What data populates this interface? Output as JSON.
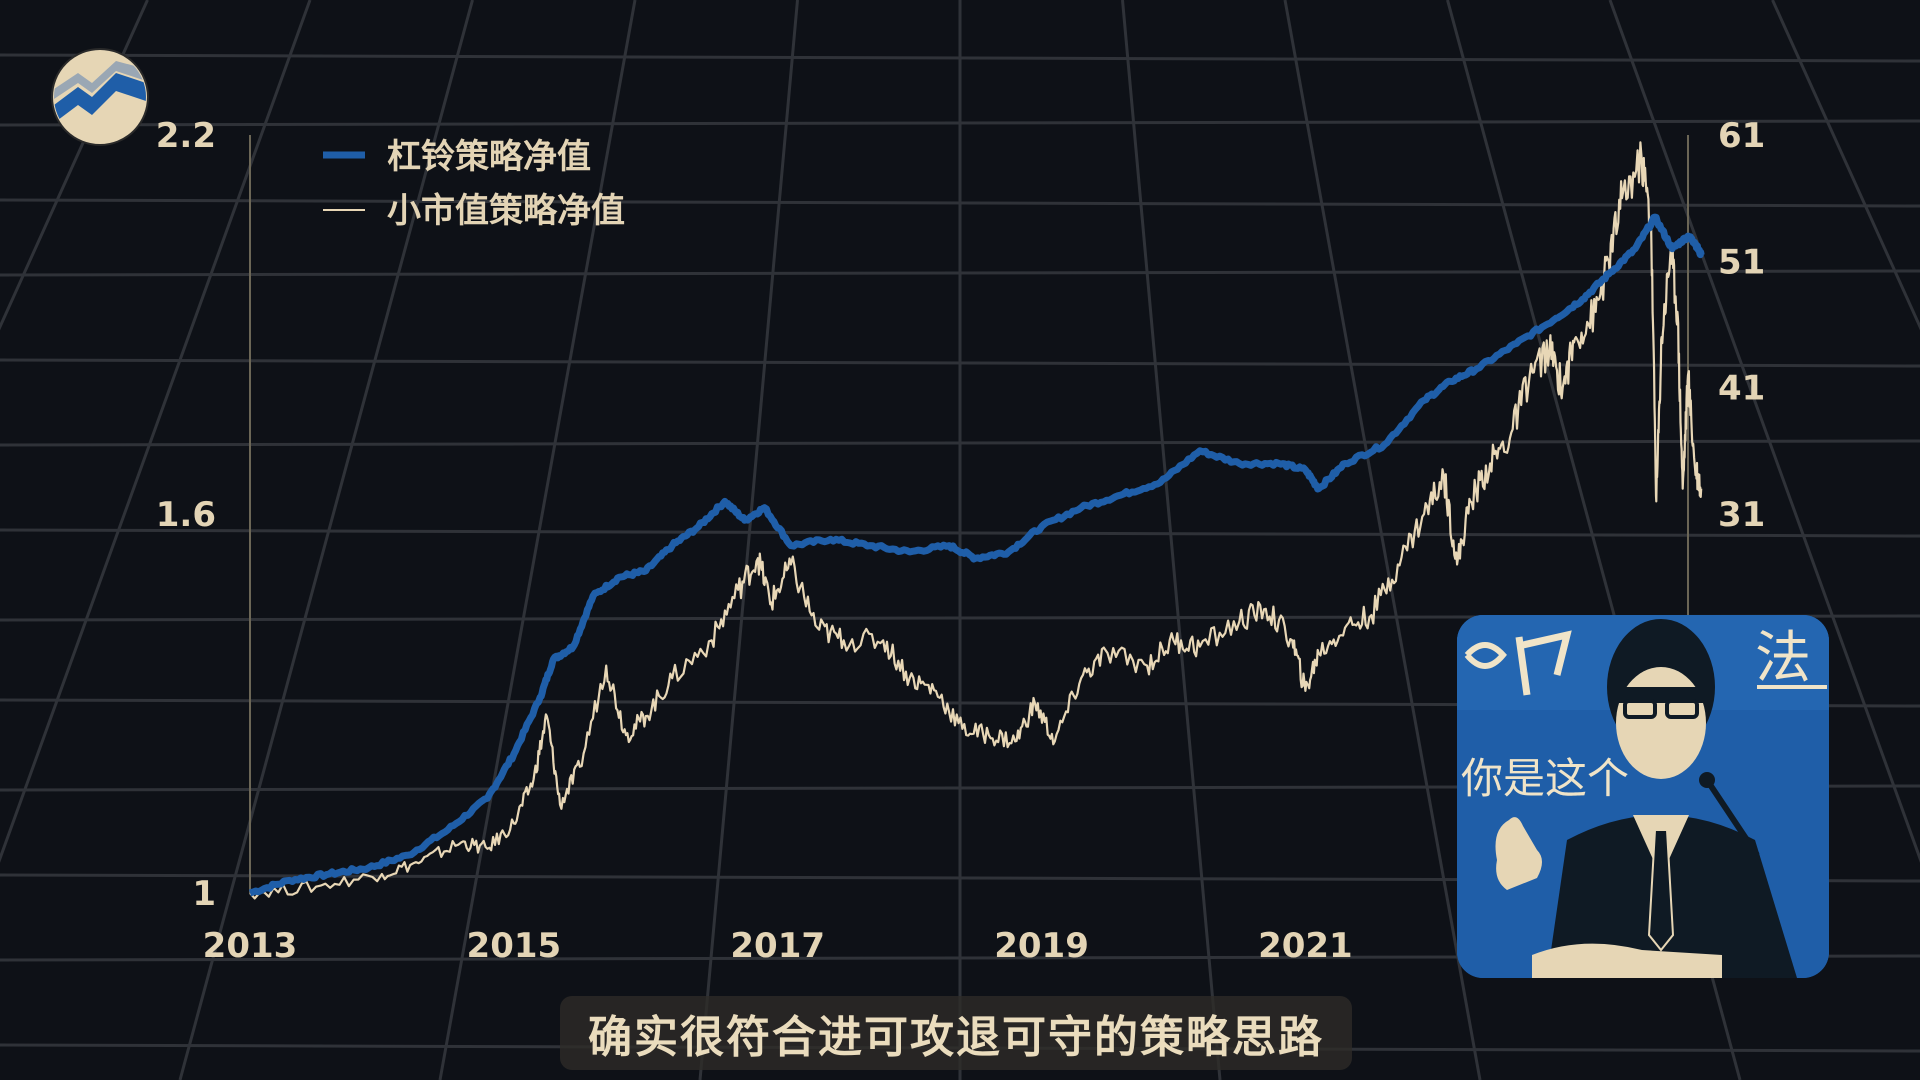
{
  "colors": {
    "background": "#0e1117",
    "grid": "#2f3238",
    "barbell": "#1f5ea8",
    "smallcap": "#e8d7b6",
    "text": "#e3d4b5"
  },
  "subtitle": "确实很符合进可攻退可守的策略思路",
  "inset": {
    "caption": "你是这个",
    "sign_text": "法"
  },
  "logo": {
    "icon": "mountain-chart-logo"
  },
  "chart_data": {
    "type": "line",
    "x_ticks": [
      "2013",
      "2015",
      "2017",
      "2019",
      "2021"
    ],
    "xlim": [
      2013.0,
      2023.9
    ],
    "left_axis": {
      "ticks": [
        "1",
        "1.6",
        "2.2"
      ],
      "ylim": [
        1.0,
        2.2
      ]
    },
    "right_axis": {
      "ticks": [
        "31",
        "41",
        "51",
        "61"
      ],
      "ylim": [
        1.0,
        61.0
      ]
    },
    "grid": true,
    "legend_position": "top-left",
    "series": [
      {
        "name": "杠铃策略净值",
        "axis": "left",
        "points": [
          [
            2013.0,
            1.0
          ],
          [
            2013.3,
            1.02
          ],
          [
            2013.6,
            1.03
          ],
          [
            2013.9,
            1.04
          ],
          [
            2014.2,
            1.06
          ],
          [
            2014.5,
            1.1
          ],
          [
            2014.8,
            1.15
          ],
          [
            2015.0,
            1.22
          ],
          [
            2015.2,
            1.31
          ],
          [
            2015.3,
            1.37
          ],
          [
            2015.45,
            1.39
          ],
          [
            2015.6,
            1.47
          ],
          [
            2015.8,
            1.5
          ],
          [
            2016.0,
            1.51
          ],
          [
            2016.2,
            1.55
          ],
          [
            2016.4,
            1.58
          ],
          [
            2016.6,
            1.62
          ],
          [
            2016.75,
            1.59
          ],
          [
            2016.9,
            1.61
          ],
          [
            2017.1,
            1.55
          ],
          [
            2017.4,
            1.56
          ],
          [
            2017.7,
            1.55
          ],
          [
            2018.0,
            1.54
          ],
          [
            2018.3,
            1.55
          ],
          [
            2018.5,
            1.53
          ],
          [
            2018.75,
            1.54
          ],
          [
            2019.0,
            1.58
          ],
          [
            2019.3,
            1.61
          ],
          [
            2019.6,
            1.63
          ],
          [
            2019.9,
            1.65
          ],
          [
            2020.2,
            1.7
          ],
          [
            2020.5,
            1.68
          ],
          [
            2020.8,
            1.68
          ],
          [
            2021.0,
            1.67
          ],
          [
            2021.1,
            1.64
          ],
          [
            2021.3,
            1.68
          ],
          [
            2021.6,
            1.71
          ],
          [
            2021.9,
            1.78
          ],
          [
            2022.1,
            1.81
          ],
          [
            2022.3,
            1.83
          ],
          [
            2022.6,
            1.87
          ],
          [
            2022.9,
            1.91
          ],
          [
            2023.1,
            1.94
          ],
          [
            2023.3,
            1.98
          ],
          [
            2023.5,
            2.02
          ],
          [
            2023.65,
            2.07
          ],
          [
            2023.78,
            2.02
          ],
          [
            2023.9,
            2.04
          ],
          [
            2023.95,
            2.03
          ],
          [
            2024.0,
            2.01
          ]
        ]
      },
      {
        "name": "小市值策略净值",
        "axis": "right",
        "points": [
          [
            2013.0,
            1.0
          ],
          [
            2013.5,
            1.5
          ],
          [
            2014.0,
            2.5
          ],
          [
            2014.3,
            3.5
          ],
          [
            2014.6,
            5.0
          ],
          [
            2014.8,
            4.5
          ],
          [
            2015.0,
            6.5
          ],
          [
            2015.15,
            10.0
          ],
          [
            2015.25,
            15.0
          ],
          [
            2015.35,
            8.0
          ],
          [
            2015.5,
            11.0
          ],
          [
            2015.7,
            19.0
          ],
          [
            2015.85,
            13.5
          ],
          [
            2016.0,
            15.0
          ],
          [
            2016.2,
            18.0
          ],
          [
            2016.5,
            21.0
          ],
          [
            2016.7,
            25.0
          ],
          [
            2016.85,
            27.5
          ],
          [
            2016.95,
            24.0
          ],
          [
            2017.1,
            27.0
          ],
          [
            2017.3,
            22.0
          ],
          [
            2017.5,
            21.0
          ],
          [
            2017.8,
            21.0
          ],
          [
            2018.0,
            18.0
          ],
          [
            2018.2,
            17.0
          ],
          [
            2018.4,
            14.0
          ],
          [
            2018.6,
            13.5
          ],
          [
            2018.8,
            13.0
          ],
          [
            2018.95,
            16.0
          ],
          [
            2019.1,
            13.0
          ],
          [
            2019.3,
            18.0
          ],
          [
            2019.5,
            20.0
          ],
          [
            2019.8,
            19.0
          ],
          [
            2020.0,
            21.0
          ],
          [
            2020.2,
            20.5
          ],
          [
            2020.5,
            22.5
          ],
          [
            2020.7,
            23.5
          ],
          [
            2020.9,
            21.0
          ],
          [
            2021.0,
            17.0
          ],
          [
            2021.1,
            20.0
          ],
          [
            2021.3,
            22.0
          ],
          [
            2021.5,
            23.0
          ],
          [
            2021.7,
            27.0
          ],
          [
            2021.9,
            31.0
          ],
          [
            2022.05,
            34.0
          ],
          [
            2022.15,
            27.0
          ],
          [
            2022.25,
            32.0
          ],
          [
            2022.4,
            35.0
          ],
          [
            2022.55,
            37.0
          ],
          [
            2022.7,
            42.0
          ],
          [
            2022.85,
            44.0
          ],
          [
            2022.95,
            41.0
          ],
          [
            2023.05,
            45.0
          ],
          [
            2023.2,
            47.0
          ],
          [
            2023.3,
            51.0
          ],
          [
            2023.4,
            56.0
          ],
          [
            2023.55,
            59.0
          ],
          [
            2023.62,
            54.0
          ],
          [
            2023.66,
            32.0
          ],
          [
            2023.7,
            45.0
          ],
          [
            2023.77,
            52.0
          ],
          [
            2023.82,
            47.0
          ],
          [
            2023.86,
            33.0
          ],
          [
            2023.9,
            42.0
          ],
          [
            2023.95,
            35.0
          ],
          [
            2024.0,
            33.0
          ]
        ]
      }
    ]
  }
}
